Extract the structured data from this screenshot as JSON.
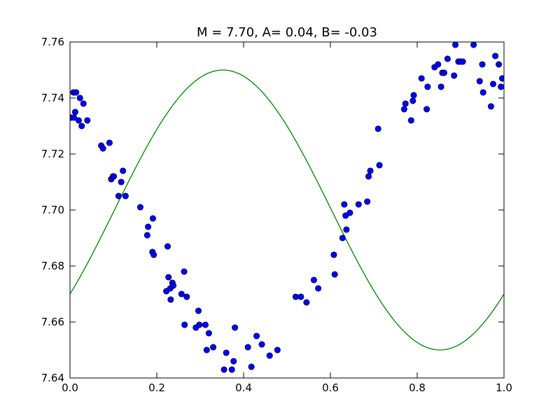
{
  "chart_data": {
    "type": "scatter",
    "title": "M =  7.70, A=  0.04, B= -0.03",
    "xlabel": "",
    "ylabel": "",
    "xlim": [
      0.0,
      1.0
    ],
    "ylim": [
      7.64,
      7.76
    ],
    "x_ticks": [
      0.0,
      0.2,
      0.4,
      0.6,
      0.8,
      1.0
    ],
    "x_tick_labels": [
      "0.0",
      "0.2",
      "0.4",
      "0.6",
      "0.8",
      "1.0"
    ],
    "y_ticks": [
      7.64,
      7.66,
      7.68,
      7.7,
      7.72,
      7.74,
      7.76
    ],
    "y_tick_labels": [
      "7.64",
      "7.66",
      "7.68",
      "7.70",
      "7.72",
      "7.74",
      "7.76"
    ],
    "grid": false,
    "legend": "none",
    "colors": {
      "points": "#0000ff",
      "point_edge": "#000000",
      "fit": "#008000"
    },
    "fit_curve": {
      "model": "M + A*sin(2*pi*x) + B*cos(2*pi*x)",
      "M": 7.7,
      "A": 0.04,
      "B": -0.03
    },
    "series": [
      {
        "kind": "points",
        "x": [
          0.002,
          0.008,
          0.009,
          0.012,
          0.014,
          0.02,
          0.023,
          0.027,
          0.031,
          0.04,
          0.072,
          0.076,
          0.091,
          0.095,
          0.099,
          0.101,
          0.112,
          0.118,
          0.122,
          0.128,
          0.162,
          0.178,
          0.18,
          0.19,
          0.191,
          0.193,
          0.222,
          0.225,
          0.227,
          0.231,
          0.232,
          0.236,
          0.238,
          0.257,
          0.263,
          0.264,
          0.269,
          0.29,
          0.296,
          0.298,
          0.312,
          0.315,
          0.32,
          0.33,
          0.355,
          0.36,
          0.373,
          0.377,
          0.38,
          0.41,
          0.418,
          0.43,
          0.442,
          0.46,
          0.478,
          0.52,
          0.532,
          0.545,
          0.562,
          0.572,
          0.608,
          0.61,
          0.628,
          0.632,
          0.635,
          0.637,
          0.645,
          0.665,
          0.685,
          0.688,
          0.692,
          0.71,
          0.713,
          0.77,
          0.773,
          0.786,
          0.79,
          0.792,
          0.81,
          0.822,
          0.824,
          0.84,
          0.848,
          0.855,
          0.858,
          0.862,
          0.87,
          0.885,
          0.888,
          0.895,
          0.9,
          0.905,
          0.93,
          0.944,
          0.95,
          0.952,
          0.97,
          0.975,
          0.98,
          0.988,
          0.993,
          0.996
        ],
        "y": [
          7.733,
          7.742,
          7.733,
          7.735,
          7.742,
          7.732,
          7.74,
          7.73,
          7.738,
          7.732,
          7.723,
          7.722,
          7.724,
          7.711,
          7.712,
          7.712,
          7.705,
          7.71,
          7.714,
          7.705,
          7.701,
          7.691,
          7.694,
          7.685,
          7.697,
          7.684,
          7.671,
          7.687,
          7.676,
          7.672,
          7.668,
          7.674,
          7.673,
          7.67,
          7.678,
          7.659,
          7.669,
          7.658,
          7.664,
          7.659,
          7.659,
          7.65,
          7.656,
          7.651,
          7.643,
          7.649,
          7.643,
          7.646,
          7.658,
          7.651,
          7.644,
          7.655,
          7.652,
          7.648,
          7.65,
          7.669,
          7.669,
          7.667,
          7.675,
          7.672,
          7.684,
          7.677,
          7.69,
          7.702,
          7.698,
          7.693,
          7.699,
          7.702,
          7.703,
          7.712,
          7.714,
          7.729,
          7.716,
          7.736,
          7.738,
          7.732,
          7.739,
          7.741,
          7.747,
          7.736,
          7.744,
          7.751,
          7.752,
          7.744,
          7.749,
          7.749,
          7.754,
          7.748,
          7.759,
          7.753,
          7.753,
          7.753,
          7.759,
          7.746,
          7.752,
          7.742,
          7.737,
          7.745,
          7.755,
          7.752,
          7.744,
          7.747
        ]
      },
      {
        "kind": "fit-line"
      }
    ]
  }
}
